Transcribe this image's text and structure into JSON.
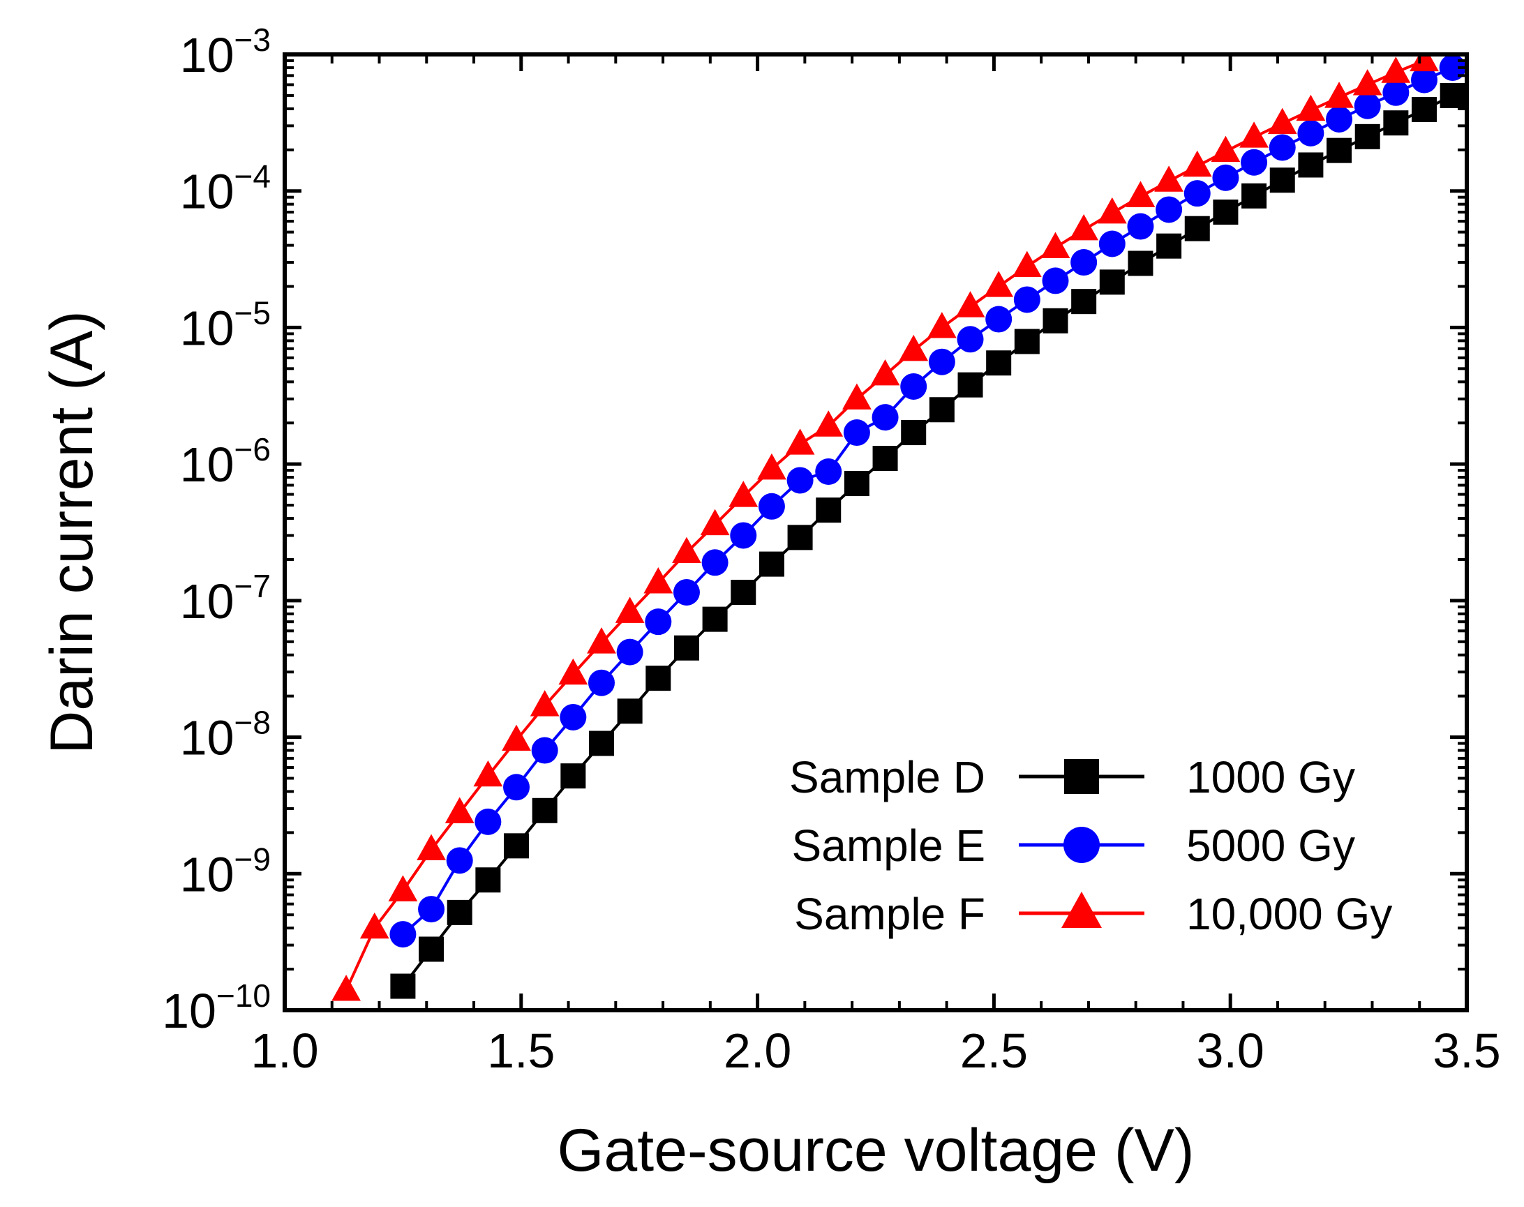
{
  "chart_data": {
    "type": "scatter",
    "xlabel": "Gate-source voltage (V)",
    "ylabel": "Darin current (A)",
    "xlim": [
      1.0,
      3.5
    ],
    "ylim": [
      1e-10,
      0.001
    ],
    "yscale": "log",
    "grid": false,
    "legend_position": "bottom-right",
    "x_ticks": [
      "1.0",
      "1.5",
      "2.0",
      "2.5",
      "3.0",
      "3.5"
    ],
    "y_ticks": [
      {
        "base": "10",
        "exp": "−10"
      },
      {
        "base": "10",
        "exp": "−9"
      },
      {
        "base": "10",
        "exp": "−8"
      },
      {
        "base": "10",
        "exp": "−7"
      },
      {
        "base": "10",
        "exp": "−6"
      },
      {
        "base": "10",
        "exp": "−5"
      },
      {
        "base": "10",
        "exp": "−4"
      },
      {
        "base": "10",
        "exp": "−3"
      }
    ],
    "series": [
      {
        "name": "Sample D",
        "dose": "1000 Gy",
        "color": "#000000",
        "marker": "square",
        "x": [
          1.25,
          1.31,
          1.37,
          1.43,
          1.49,
          1.55,
          1.61,
          1.67,
          1.73,
          1.79,
          1.85,
          1.91,
          1.97,
          2.03,
          2.09,
          2.15,
          2.21,
          2.27,
          2.33,
          2.39,
          2.45,
          2.51,
          2.57,
          2.63,
          2.69,
          2.75,
          2.81,
          2.87,
          2.93,
          2.99,
          3.05,
          3.11,
          3.17,
          3.23,
          3.29,
          3.35,
          3.41,
          3.47
        ],
        "y": [
          1.5e-10,
          2.8e-10,
          5.2e-10,
          9e-10,
          1.6e-09,
          2.9e-09,
          5.2e-09,
          9e-09,
          1.55e-08,
          2.7e-08,
          4.5e-08,
          7.3e-08,
          1.15e-07,
          1.85e-07,
          2.9e-07,
          4.6e-07,
          7.2e-07,
          1.1e-06,
          1.7e-06,
          2.5e-06,
          3.8e-06,
          5.5e-06,
          7.9e-06,
          1.12e-05,
          1.55e-05,
          2.15e-05,
          2.95e-05,
          3.95e-05,
          5.3e-05,
          7e-05,
          9.2e-05,
          0.00012,
          0.000155,
          0.000198,
          0.00025,
          0.000315,
          0.000395,
          0.0005
        ]
      },
      {
        "name": "Sample E",
        "dose": "5000 Gy",
        "color": "#0000ff",
        "marker": "circle",
        "x": [
          1.25,
          1.31,
          1.37,
          1.43,
          1.49,
          1.55,
          1.61,
          1.67,
          1.73,
          1.79,
          1.85,
          1.91,
          1.97,
          2.03,
          2.09,
          2.15,
          2.21,
          2.27,
          2.33,
          2.39,
          2.45,
          2.51,
          2.57,
          2.63,
          2.69,
          2.75,
          2.81,
          2.87,
          2.93,
          2.99,
          3.05,
          3.11,
          3.17,
          3.23,
          3.29,
          3.35,
          3.41,
          3.47
        ],
        "y": [
          3.6e-10,
          5.5e-10,
          1.25e-09,
          2.4e-09,
          4.3e-09,
          8e-09,
          1.4e-08,
          2.5e-08,
          4.2e-08,
          7e-08,
          1.15e-07,
          1.9e-07,
          3e-07,
          4.9e-07,
          7.6e-07,
          8.8e-07,
          1.7e-06,
          2.2e-06,
          3.7e-06,
          5.6e-06,
          8.2e-06,
          1.15e-05,
          1.6e-05,
          2.2e-05,
          3e-05,
          4.1e-05,
          5.5e-05,
          7.3e-05,
          9.6e-05,
          0.000125,
          0.000162,
          0.000208,
          0.000265,
          0.000335,
          0.00042,
          0.000525,
          0.00065,
          0.0008
        ]
      },
      {
        "name": "Sample F",
        "dose": "10,000 Gy",
        "color": "#ff0000",
        "marker": "triangle",
        "x": [
          1.13,
          1.19,
          1.25,
          1.31,
          1.37,
          1.43,
          1.49,
          1.55,
          1.61,
          1.67,
          1.73,
          1.79,
          1.85,
          1.91,
          1.97,
          2.03,
          2.09,
          2.15,
          2.21,
          2.27,
          2.33,
          2.39,
          2.45,
          2.51,
          2.57,
          2.63,
          2.69,
          2.75,
          2.81,
          2.87,
          2.93,
          2.99,
          3.05,
          3.11,
          3.17,
          3.23,
          3.29,
          3.35,
          3.41
        ],
        "y": [
          1.4e-10,
          4e-10,
          7.5e-10,
          1.5e-09,
          2.8e-09,
          5.2e-09,
          9.5e-09,
          1.7e-08,
          2.9e-08,
          4.9e-08,
          8.2e-08,
          1.35e-07,
          2.25e-07,
          3.6e-07,
          5.8e-07,
          9.2e-07,
          1.4e-06,
          1.9e-06,
          3e-06,
          4.5e-06,
          6.8e-06,
          1e-05,
          1.42e-05,
          2e-05,
          2.8e-05,
          3.85e-05,
          5.2e-05,
          6.9e-05,
          9.1e-05,
          0.000118,
          0.000152,
          0.000195,
          0.000248,
          0.000312,
          0.00039,
          0.000485,
          0.0006,
          0.00074,
          0.0009
        ]
      }
    ]
  }
}
